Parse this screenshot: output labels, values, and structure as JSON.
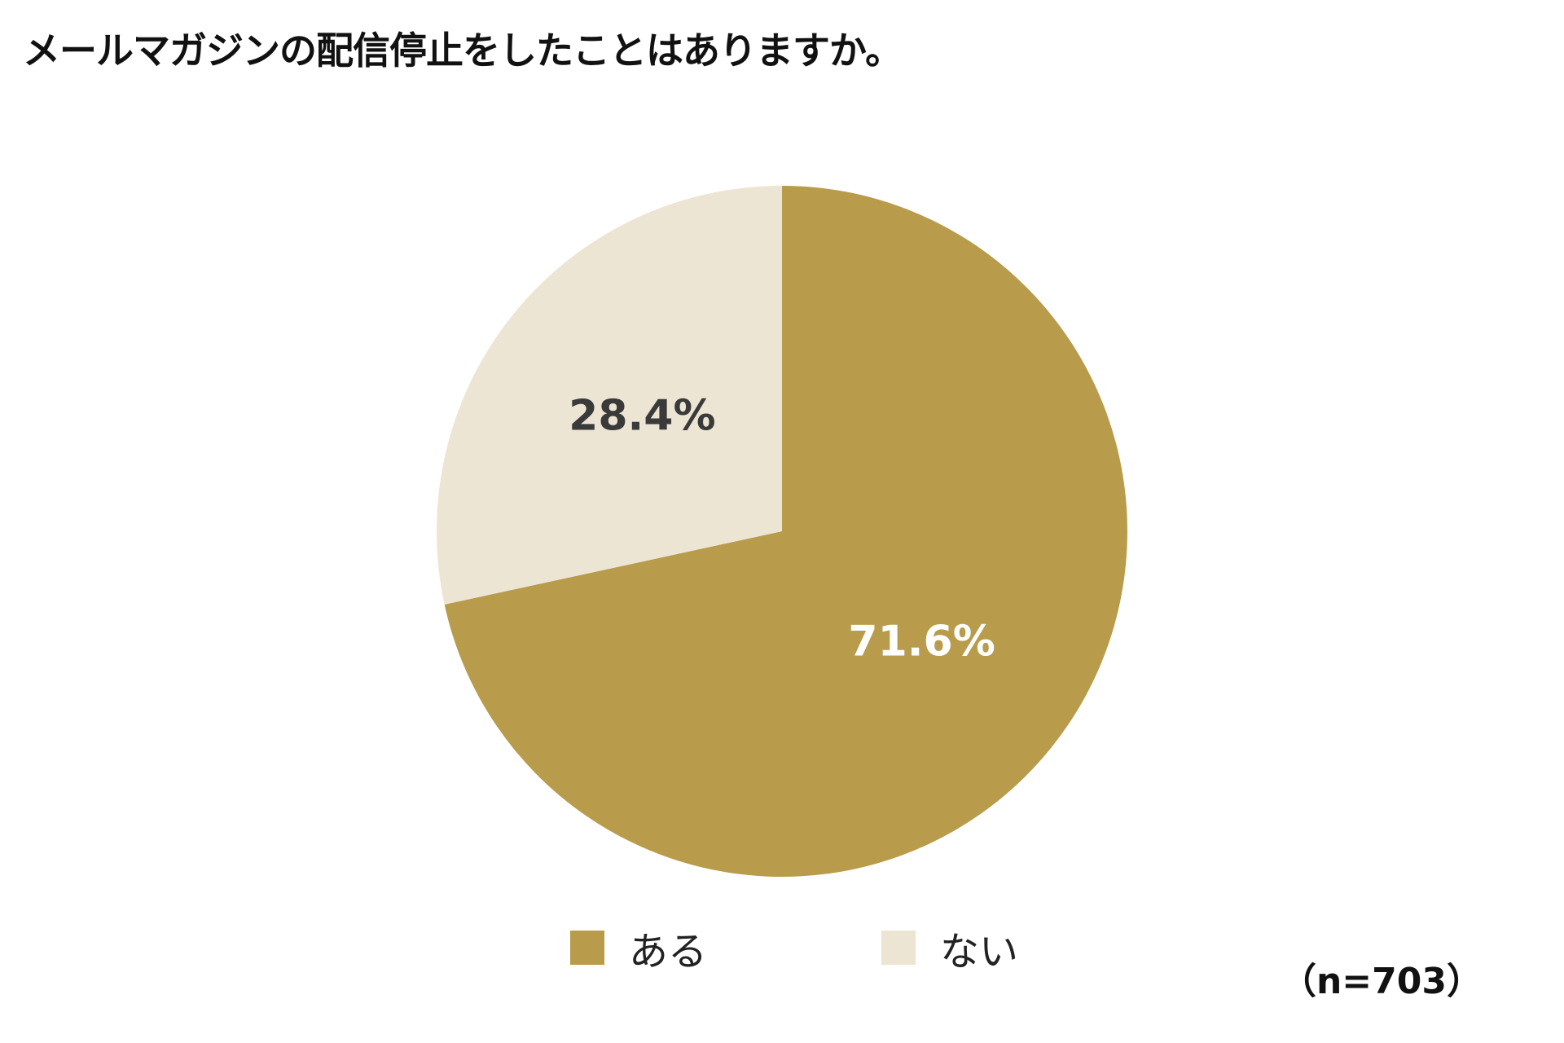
{
  "chart_data": {
    "type": "pie",
    "title": "メールマガジンの配信停止をしたことはありますか。",
    "slices": [
      {
        "label": "ある",
        "value": 71.6,
        "value_label": "71.6%",
        "color": "#b89c4b",
        "label_color": "#ffffff"
      },
      {
        "label": "ない",
        "value": 28.4,
        "value_label": "28.4%",
        "color": "#ede5d4",
        "label_color": "#3a3a3a"
      }
    ],
    "legend": [
      {
        "label": "ある",
        "color": "#b89c4b"
      },
      {
        "label": "ない",
        "color": "#ede5d4"
      }
    ],
    "legend_position": "bottom",
    "note": "（n=703）"
  }
}
